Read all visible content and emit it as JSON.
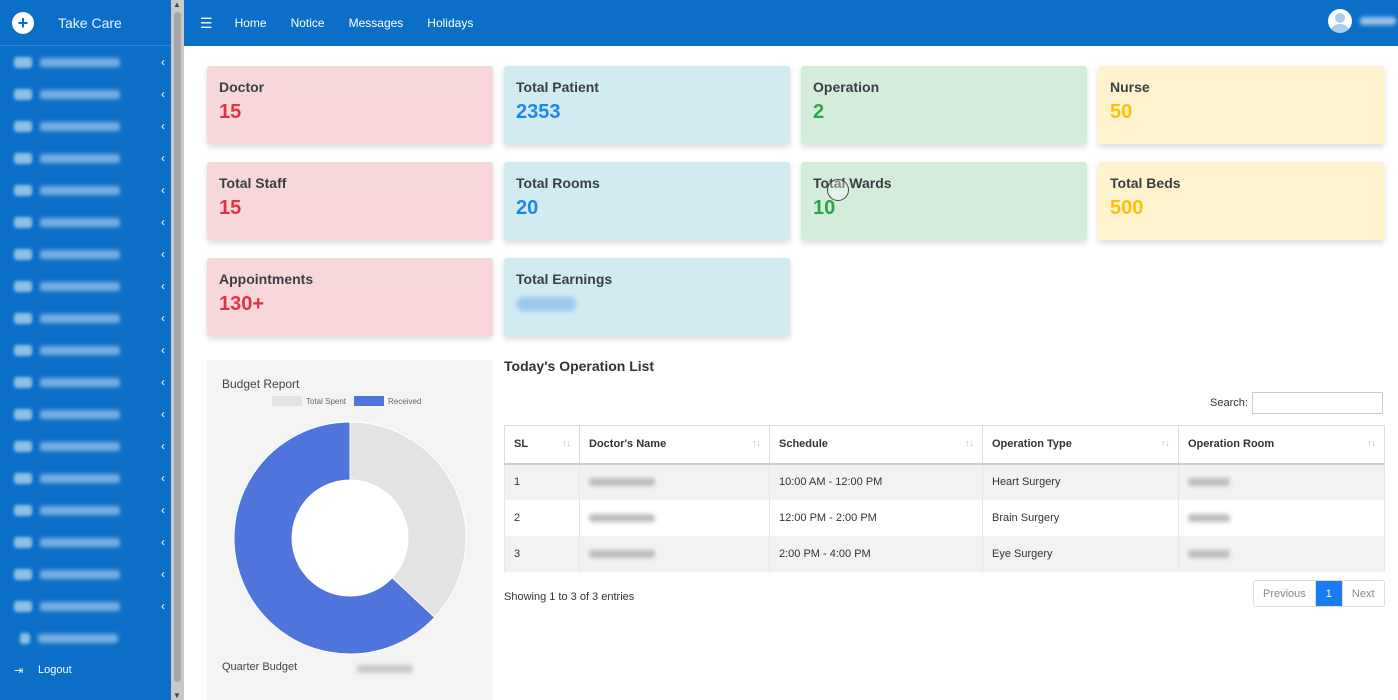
{
  "brand": {
    "title": "Take Care"
  },
  "sidebar": {
    "items": [
      {
        "name": "sidebar-item-reception"
      },
      {
        "name": "sidebar-item-duty-doctor"
      },
      {
        "name": "sidebar-item-nurse-station"
      },
      {
        "name": "sidebar-item-pathology"
      },
      {
        "name": "sidebar-item-opd"
      },
      {
        "name": "sidebar-item-emergency"
      },
      {
        "name": "sidebar-item-icu"
      },
      {
        "name": "sidebar-item-pcm"
      },
      {
        "name": "sidebar-item-ot-section"
      },
      {
        "name": "sidebar-item-store-section"
      },
      {
        "name": "sidebar-item-accounts"
      },
      {
        "name": "sidebar-item-hr-information"
      },
      {
        "name": "sidebar-item-ambulance"
      },
      {
        "name": "sidebar-item-death-registration"
      },
      {
        "name": "sidebar-item-radiology"
      },
      {
        "name": "sidebar-item-ceo"
      },
      {
        "name": "sidebar-item-cmo"
      },
      {
        "name": "sidebar-item-setup"
      }
    ],
    "logout_label": "Logout"
  },
  "topbar": {
    "links": [
      "Home",
      "Notice",
      "Messages",
      "Holidays"
    ]
  },
  "cards": [
    {
      "title": "Doctor",
      "value": "15"
    },
    {
      "title": "Total Patient",
      "value": "2353"
    },
    {
      "title": "Operation",
      "value": "2"
    },
    {
      "title": "Nurse",
      "value": "50"
    },
    {
      "title": "Total Staff",
      "value": "15"
    },
    {
      "title": "Total Rooms",
      "value": "20"
    },
    {
      "title": "Total Wards",
      "value": "10"
    },
    {
      "title": "Total Beds",
      "value": "500"
    },
    {
      "title": "Appointments",
      "value": "130+"
    },
    {
      "title": "Total Earnings",
      "value": ""
    }
  ],
  "budget": {
    "title": "Budget Report",
    "legend": [
      "Total Spent",
      "Received"
    ],
    "quarter_label": "Quarter Budget",
    "colors": {
      "spent": "#e3e3e3",
      "received": "#4f74dc"
    },
    "chart_data": {
      "type": "pie",
      "series": [
        {
          "name": "Total Spent",
          "values": [
            37
          ]
        },
        {
          "name": "Received",
          "values": [
            63
          ]
        }
      ]
    }
  },
  "operations": {
    "title": "Today's Operation List",
    "search_label": "Search:",
    "search_value": "",
    "columns": [
      "SL",
      "Doctor's Name",
      "Schedule",
      "Operation Type",
      "Operation Room"
    ],
    "rows": [
      {
        "sl": "1",
        "schedule": "10:00 AM - 12:00 PM",
        "type": "Heart Surgery"
      },
      {
        "sl": "2",
        "schedule": "12:00 PM - 2:00 PM",
        "type": "Brain Surgery"
      },
      {
        "sl": "3",
        "schedule": "2:00 PM - 4:00 PM",
        "type": "Eye Surgery"
      }
    ],
    "info": "Showing 1 to 3 of 3 entries",
    "pager": {
      "prev": "Previous",
      "current": "1",
      "next": "Next"
    }
  }
}
